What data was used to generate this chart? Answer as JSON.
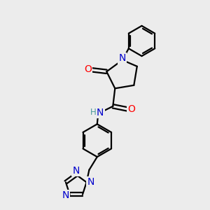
{
  "bg_color": "#ececec",
  "atom_colors": {
    "C": "#000000",
    "N": "#0000cc",
    "O": "#ff0000",
    "H": "#4a9a9a"
  },
  "bond_color": "#000000",
  "bond_width": 1.6,
  "font_size_atom": 10,
  "font_size_small": 8.5
}
